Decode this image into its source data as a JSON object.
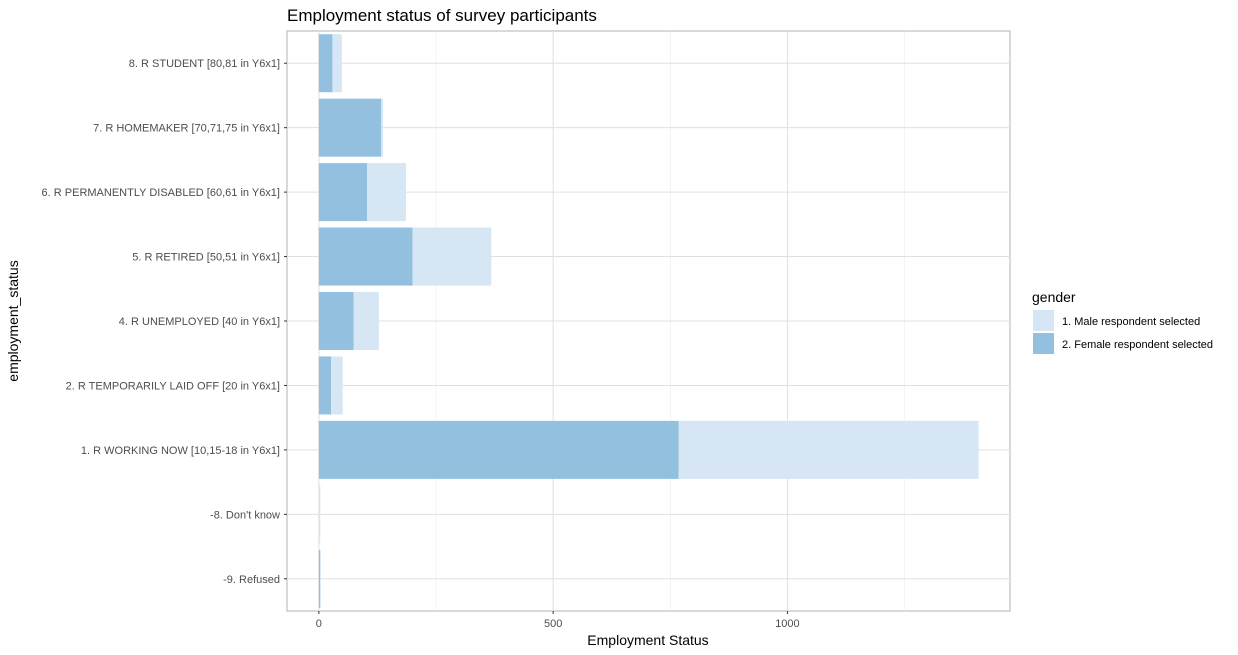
{
  "chart_data": {
    "type": "bar",
    "orientation": "horizontal",
    "stacked": true,
    "title": "Employment status of survey participants",
    "xlabel": "Employment Status",
    "ylabel": "employment_status",
    "xlim": [
      -68,
      1475
    ],
    "x_ticks": [
      0,
      500,
      1000
    ],
    "grid": true,
    "legend": {
      "title": "gender",
      "position": "right"
    },
    "categories": [
      "8. R STUDENT [80,81 in Y6x1]",
      "7. R HOMEMAKER [70,71,75 in Y6x1]",
      "6. R PERMANENTLY DISABLED [60,61 in Y6x1]",
      "5. R RETIRED [50,51 in Y6x1]",
      "4. R UNEMPLOYED [40 in Y6x1]",
      "2. R TEMPORARILY LAID OFF [20 in Y6x1]",
      "1. R WORKING NOW [10,15-18 in Y6x1]",
      "-8. Don't know",
      "-9. Refused"
    ],
    "series": [
      {
        "name": "2. Female respondent selected",
        "color": "#92c0de",
        "values": [
          29,
          133,
          103,
          200,
          74,
          26,
          768,
          0,
          3
        ]
      },
      {
        "name": "1. Male respondent selected",
        "color": "#d6e6f4",
        "values": [
          20,
          4,
          83,
          168,
          54,
          25,
          640,
          3,
          1
        ]
      }
    ]
  }
}
